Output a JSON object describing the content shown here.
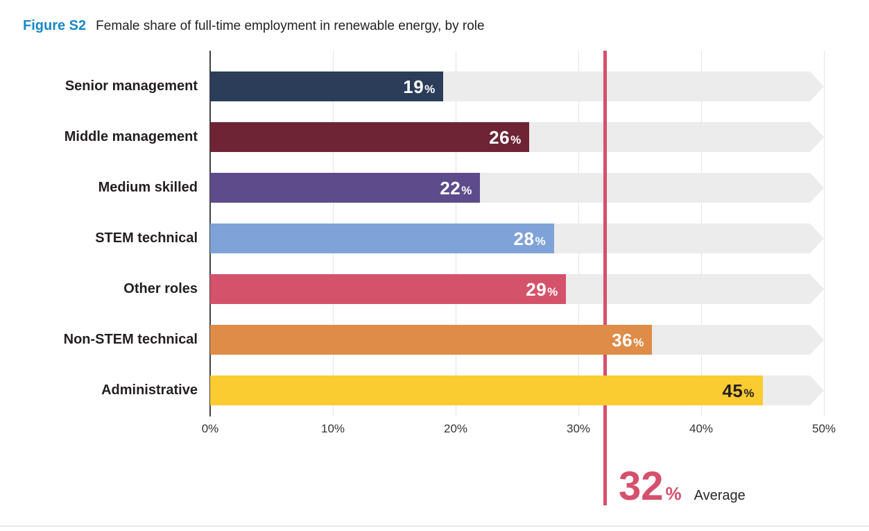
{
  "title": {
    "figure_label": "Figure S2",
    "text": "Female share of full-time employment in renewable energy, by role",
    "label_color": "#1787C8"
  },
  "chart_data": {
    "type": "bar",
    "orientation": "horizontal",
    "title": "Female share of full-time employment in renewable energy, by role",
    "categories": [
      "Senior management",
      "Middle management",
      "Medium skilled",
      "STEM technical",
      "Other roles",
      "Non-STEM technical",
      "Administrative"
    ],
    "values": [
      19,
      26,
      22,
      28,
      29,
      36,
      45
    ],
    "value_suffix": "%",
    "bar_colors": [
      "#2B3D59",
      "#6E2435",
      "#5D4B8B",
      "#7FA3D8",
      "#D4536B",
      "#DE8C48",
      "#FBCB32"
    ],
    "value_label_colors": [
      "#FFFFFF",
      "#FFFFFF",
      "#FFFFFF",
      "#FFFFFF",
      "#FFFFFF",
      "#FFFFFF",
      "#231F20"
    ],
    "x_ticks": [
      "0%",
      "10%",
      "20%",
      "30%",
      "40%",
      "50%"
    ],
    "x_tick_values": [
      0,
      10,
      20,
      30,
      40,
      50
    ],
    "xlim": [
      0,
      50
    ],
    "gridlines": true,
    "legend": "none",
    "track_color": "#ECECEC",
    "average": {
      "value": 32,
      "display_number": "32",
      "display_suffix": "%",
      "label": "Average",
      "line_color": "#D5506C"
    }
  }
}
